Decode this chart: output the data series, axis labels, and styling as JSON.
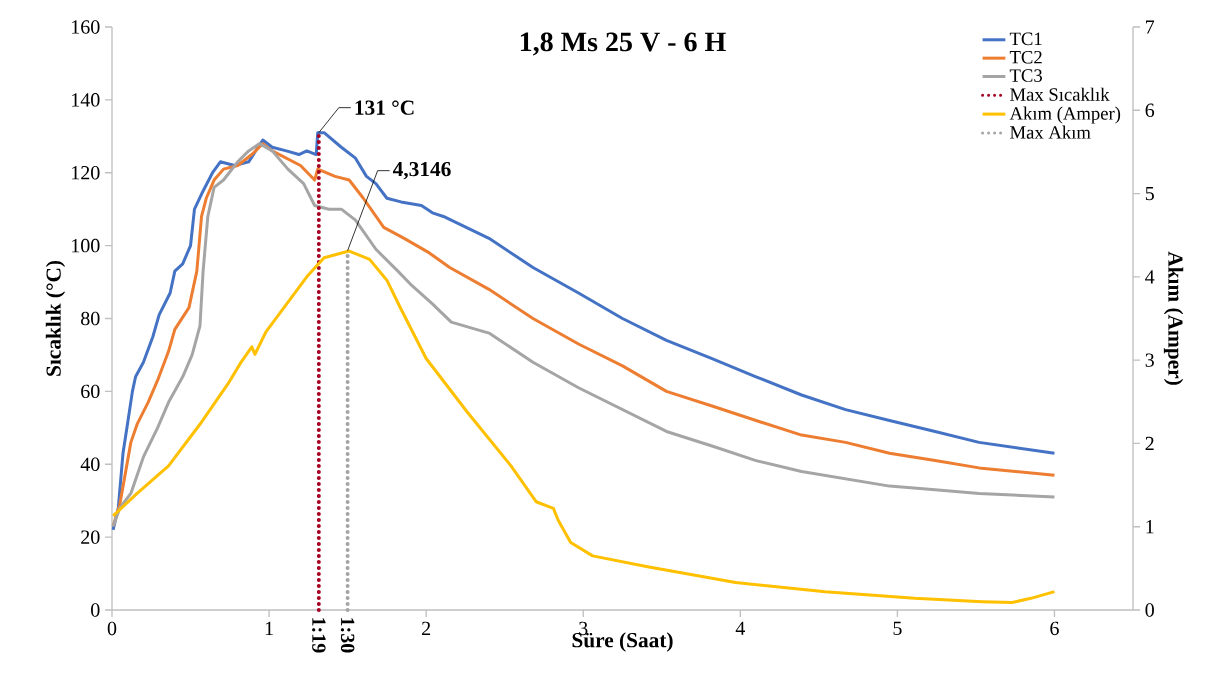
{
  "chart_data": {
    "type": "line",
    "title": "1,8 Ms 25 V - 6 H",
    "xlabel": "Süre (Saat)",
    "ylabel": "Sıcaklık (°C)",
    "y2label": "Akım (Amper)",
    "xlim": [
      0,
      6.5
    ],
    "xticks": [
      0,
      1,
      2,
      3,
      4,
      5,
      6
    ],
    "annotations": [
      {
        "text": "1:19",
        "x": 1.3167,
        "y": 0
      },
      {
        "text": "1:30",
        "x": 1.5,
        "y": 0
      }
    ],
    "ylim": [
      0,
      160
    ],
    "yticks": [
      0,
      20,
      40,
      60,
      80,
      100,
      120,
      140,
      160
    ],
    "y2lim": [
      0,
      7
    ],
    "y2ticks": [
      0,
      1,
      2,
      3,
      4,
      5,
      6,
      7
    ],
    "legend": "top right",
    "series": [
      {
        "name": "TC1",
        "color": "#4472c4",
        "x": [
          0.007,
          0.04,
          0.07,
          0.095,
          0.13,
          0.15,
          0.2,
          0.26,
          0.3,
          0.37,
          0.4,
          0.45,
          0.5,
          0.525,
          0.58,
          0.64,
          0.69,
          0.78,
          0.87,
          0.96,
          1.02,
          1.11,
          1.19,
          1.24,
          1.3,
          1.31,
          1.35,
          1.46,
          1.55,
          1.62,
          1.68,
          1.75,
          1.84,
          1.97,
          2.04,
          2.11,
          2.4,
          2.68,
          2.97,
          3.25,
          3.53,
          3.82,
          4.1,
          4.39,
          4.67,
          4.95,
          5.24,
          5.52,
          6
        ],
        "values": [
          22,
          28,
          43,
          50,
          60,
          64,
          68,
          75,
          81,
          87,
          93,
          95,
          100,
          110,
          115,
          120,
          123,
          122,
          123,
          129,
          127,
          126,
          125,
          126,
          125,
          131,
          131,
          127,
          124,
          119,
          117,
          113,
          112,
          111,
          109,
          108,
          102,
          94,
          87,
          80,
          74,
          69,
          64,
          59,
          55,
          52,
          49,
          46,
          43
        ]
      },
      {
        "name": "TC2",
        "color": "#ed7d31",
        "x": [
          0.007,
          0.05,
          0.12,
          0.16,
          0.23,
          0.29,
          0.36,
          0.4,
          0.49,
          0.54,
          0.57,
          0.6,
          0.65,
          0.71,
          0.8,
          0.89,
          0.96,
          1.02,
          1.11,
          1.2,
          1.29,
          1.31,
          1.42,
          1.51,
          1.6,
          1.73,
          1.86,
          2.02,
          2.15,
          2.4,
          2.68,
          2.97,
          3.25,
          3.53,
          3.82,
          4.1,
          4.39,
          4.67,
          4.95,
          5.24,
          5.52,
          6
        ],
        "values": [
          23,
          29,
          46,
          51,
          57,
          63,
          71,
          77,
          83,
          93,
          108,
          113,
          118,
          121,
          122,
          125,
          128,
          126,
          124,
          122,
          118,
          121,
          119,
          118,
          113,
          105,
          102,
          98,
          94,
          88,
          80,
          73,
          67,
          60,
          56,
          52,
          48,
          46,
          43,
          41,
          39,
          37
        ]
      },
      {
        "name": "TC3",
        "color": "#a5a5a5",
        "x": [
          0.007,
          0.05,
          0.12,
          0.2,
          0.29,
          0.36,
          0.45,
          0.51,
          0.56,
          0.58,
          0.61,
          0.65,
          0.71,
          0.8,
          0.87,
          0.94,
          1.02,
          1.12,
          1.22,
          1.29,
          1.38,
          1.46,
          1.55,
          1.68,
          1.82,
          1.91,
          2.04,
          2.16,
          2.4,
          2.68,
          2.97,
          3.25,
          3.53,
          3.82,
          4.1,
          4.39,
          4.67,
          4.95,
          5.24,
          5.52,
          6
        ],
        "values": [
          23,
          28,
          32,
          42,
          50,
          57,
          64,
          70,
          78,
          93,
          108,
          116,
          118,
          123,
          126,
          128,
          126,
          121,
          117,
          111,
          110,
          110,
          107,
          99,
          93,
          89,
          84,
          79,
          76,
          68,
          61,
          55,
          49,
          45,
          41,
          38,
          36,
          34,
          33,
          32,
          31
        ]
      },
      {
        "name": "Max Sıcaklık",
        "color": "#a50021",
        "line_style": "dotted",
        "x": [
          1.3167,
          1.3167
        ],
        "values": [
          0,
          131
        ],
        "value_labels": [
          null,
          "131 °C"
        ]
      },
      {
        "name": "Akım (Amper)",
        "color": "#ffc000",
        "axis": "y2",
        "x": [
          0.007,
          0.16,
          0.36,
          0.56,
          0.74,
          0.82,
          0.89,
          0.91,
          0.98,
          1.11,
          1.24,
          1.35,
          1.51,
          1.64,
          1.75,
          1.83,
          2.0,
          2.26,
          2.54,
          2.7,
          2.81,
          2.84,
          2.92,
          3.06,
          3.41,
          3.97,
          4.54,
          5.11,
          5.54,
          5.73,
          5.85,
          6
        ],
        "values": [
          1.13,
          1.4,
          1.73,
          2.23,
          2.72,
          2.97,
          3.16,
          3.07,
          3.34,
          3.67,
          4.0,
          4.23,
          4.31,
          4.21,
          3.96,
          3.65,
          3.02,
          2.38,
          1.73,
          1.3,
          1.22,
          1.08,
          0.81,
          0.65,
          0.52,
          0.33,
          0.22,
          0.14,
          0.1,
          0.09,
          0.14,
          0.22
        ]
      },
      {
        "name": "Max Akım",
        "color": "#a5a5a5",
        "line_style": "dotted",
        "axis": "y2",
        "x": [
          1.5,
          1.5
        ],
        "values": [
          0,
          4.3146
        ],
        "value_labels": [
          null,
          "4,3146"
        ]
      }
    ]
  }
}
